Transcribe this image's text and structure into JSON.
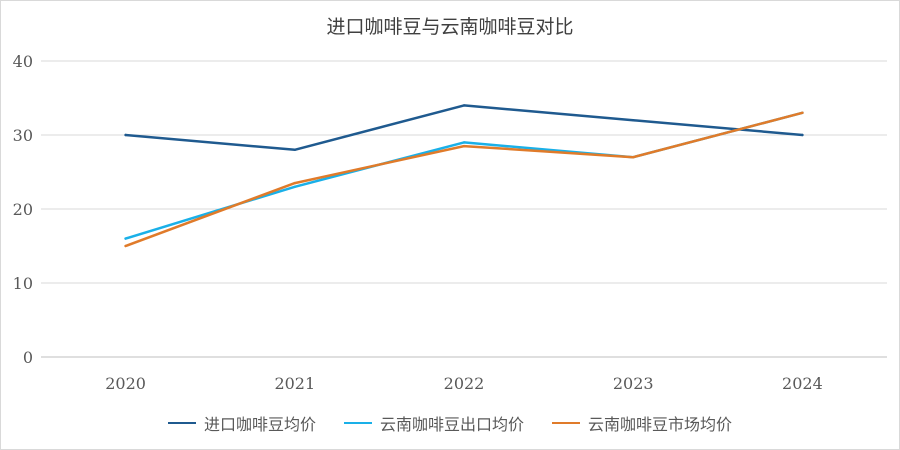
{
  "chart_data": {
    "type": "line",
    "title": "进口咖啡豆与云南咖啡豆对比",
    "categories": [
      "2020",
      "2021",
      "2022",
      "2023",
      "2024"
    ],
    "ylim": [
      0,
      40
    ],
    "yticks": [
      0,
      10,
      20,
      30,
      40
    ],
    "grid": true,
    "legend_position": "bottom",
    "series": [
      {
        "name": "进口咖啡豆均价",
        "color": "#1f5a8f",
        "values": [
          30,
          28,
          34,
          32,
          30
        ]
      },
      {
        "name": "云南咖啡豆出口均价",
        "color": "#1ab0e8",
        "values": [
          16,
          23,
          29,
          27,
          33
        ]
      },
      {
        "name": "云南咖啡豆市场均价",
        "color": "#e07b2a",
        "values": [
          15,
          23.5,
          28.5,
          27,
          33
        ]
      }
    ]
  }
}
